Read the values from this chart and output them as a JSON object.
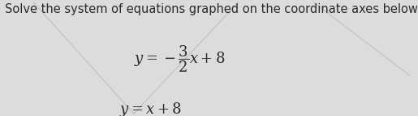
{
  "title_text": "Solve the system of equations graphed on the coordinate axes below.",
  "bg_color": "#dcdcdc",
  "text_color": "#2a2a2a",
  "title_fontsize": 10.5,
  "eq_fontsize": 13,
  "figsize": [
    5.15,
    1.44
  ],
  "dpi": 100,
  "line_color": "#b8b8b8",
  "lines": [
    {
      "x": [
        0.08,
        0.32
      ],
      "y": [
        0.98,
        0.02
      ]
    },
    {
      "x": [
        0.32,
        0.57
      ],
      "y": [
        0.02,
        0.98
      ]
    },
    {
      "x": [
        0.75,
        0.98
      ],
      "y": [
        0.98,
        0.35
      ]
    }
  ]
}
